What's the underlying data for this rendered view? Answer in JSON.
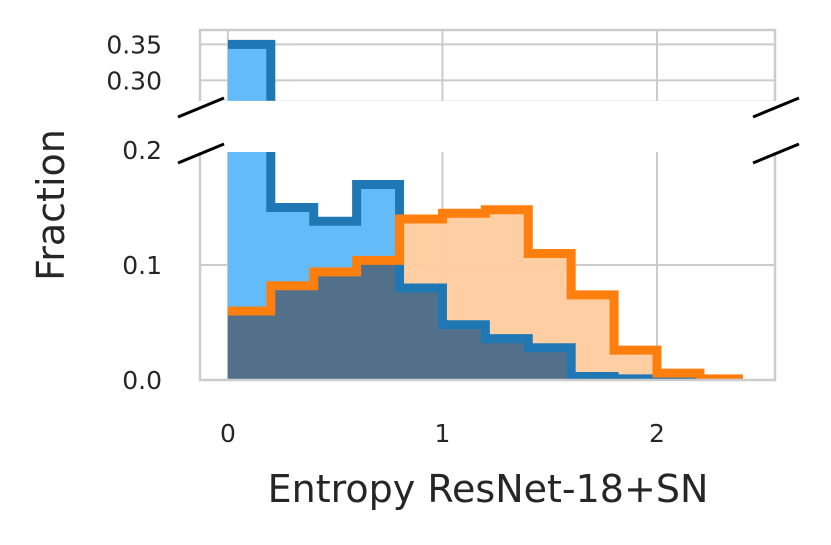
{
  "chart_data": {
    "type": "histogram",
    "xlabel": "Entropy ResNet-18+SN",
    "ylabel": "Fraction",
    "xlim": [
      -0.13,
      2.55
    ],
    "x_ticks": [
      {
        "value": 0,
        "label": "0"
      },
      {
        "value": 1,
        "label": "1"
      },
      {
        "value": 2,
        "label": "2"
      }
    ],
    "y_break": true,
    "lower_ylim": [
      0,
      0.2
    ],
    "upper_ylim": [
      0.27,
      0.37
    ],
    "lower_y_ticks": [
      {
        "value": 0.0,
        "label": "0.0"
      },
      {
        "value": 0.1,
        "label": "0.1"
      },
      {
        "value": 0.2,
        "label": "0.2"
      }
    ],
    "upper_y_ticks": [
      {
        "value": 0.3,
        "label": "0.30"
      },
      {
        "value": 0.35,
        "label": "0.35"
      }
    ],
    "grid": true,
    "bin_edges": [
      0.0,
      0.2,
      0.4,
      0.6,
      0.8,
      1.0,
      1.2,
      1.4,
      1.6,
      1.8,
      2.0,
      2.2,
      2.4
    ],
    "series": [
      {
        "color": "#1f77b4",
        "fill_color": "#63bbf7",
        "values": [
          0.35,
          0.15,
          0.138,
          0.17,
          0.08,
          0.048,
          0.036,
          0.028,
          0.003,
          0.001,
          0.0,
          0.0
        ]
      },
      {
        "color": "#ff7f0e",
        "fill_color": "#ffcc9e",
        "values": [
          0.06,
          0.082,
          0.094,
          0.104,
          0.14,
          0.145,
          0.148,
          0.11,
          0.074,
          0.026,
          0.006,
          0.001
        ]
      }
    ]
  }
}
